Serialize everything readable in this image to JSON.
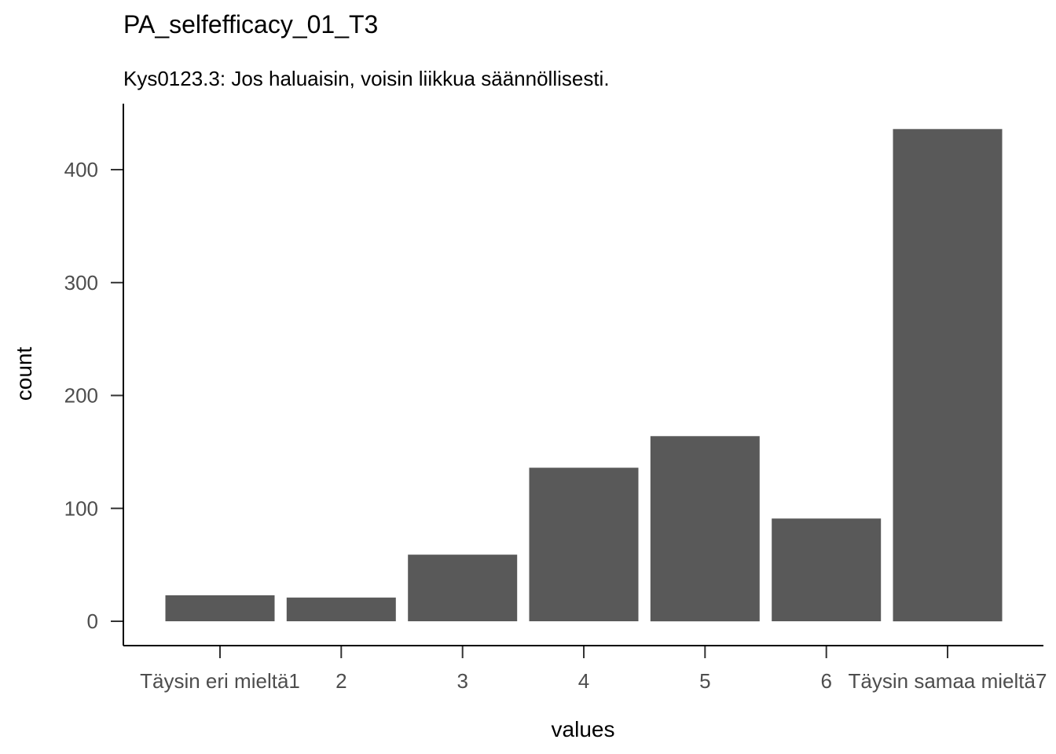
{
  "chart_data": {
    "type": "bar",
    "title": "PA_selfefficacy_01_T3",
    "subtitle": "Kys0123.3: Jos haluaisin, voisin liikkua säännöllisesti.",
    "xlabel": "values",
    "ylabel": "count",
    "categories": [
      "Täysin eri mieltä1",
      "2",
      "3",
      "4",
      "5",
      "6",
      "Täysin samaa mieltä7"
    ],
    "values": [
      23,
      21,
      59,
      136,
      164,
      91,
      436
    ],
    "yticks": [
      0,
      100,
      200,
      300,
      400
    ],
    "ylim": [
      0,
      455
    ],
    "colors": {
      "bar": "#595959"
    }
  }
}
